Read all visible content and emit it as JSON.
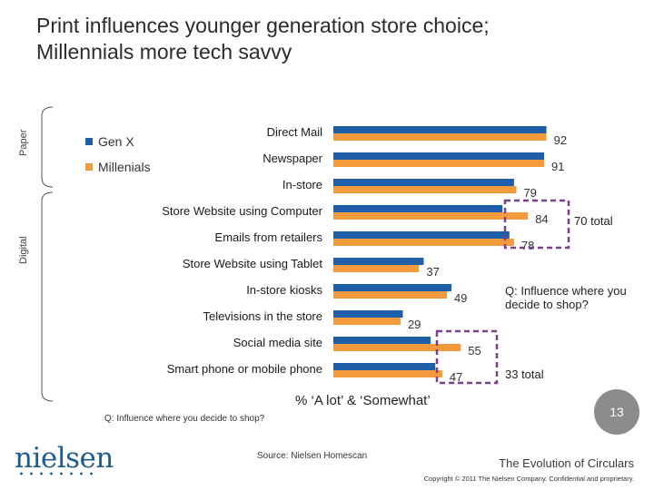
{
  "slide": {
    "title_line1": "Print influences younger generation store choice;",
    "title_line2": "Millennials more tech savvy",
    "group_paper": "Paper",
    "group_digital": "Digital",
    "note_70": "70 total",
    "note_33": "33 total",
    "question_right": "Q: Influence where you decide to shop?",
    "question_bottom": "Q: Influence where you decide to shop?",
    "source": "Source:  Nielsen Homescan",
    "page_number": "13",
    "logo": "nielsen",
    "footer_title": "The Evolution of Circulars",
    "copyright": "Copyright © 2011 The Nielsen Company. Confidential and proprietary.",
    "colors": {
      "genx": "#1f5ea8",
      "millennials": "#f39a3c",
      "dashed_box": "#7b3f8c",
      "badge": "#8c8c8c"
    }
  },
  "chart_data": {
    "type": "bar",
    "orientation": "horizontal",
    "categories": [
      "Direct Mail",
      "Newspaper",
      "In-store",
      "Store Website using Computer",
      "Emails from retailers",
      "Store Website using Tablet",
      "In-store kiosks",
      "Televisions in the store",
      "Social media site",
      "Smart phone or mobile phone"
    ],
    "series": [
      {
        "name": "Gen X",
        "values": [
          92,
          91,
          78,
          73,
          76,
          39,
          51,
          30,
          42,
          44
        ]
      },
      {
        "name": "Millenials",
        "values": [
          92,
          91,
          79,
          84,
          78,
          37,
          49,
          29,
          55,
          47
        ]
      }
    ],
    "data_labels_series": "Millenials",
    "xlabel": "% ‘A lot’ & ‘Somewhat’",
    "xlim": [
      0,
      100
    ],
    "grid": false,
    "legend_position": "top-left"
  }
}
